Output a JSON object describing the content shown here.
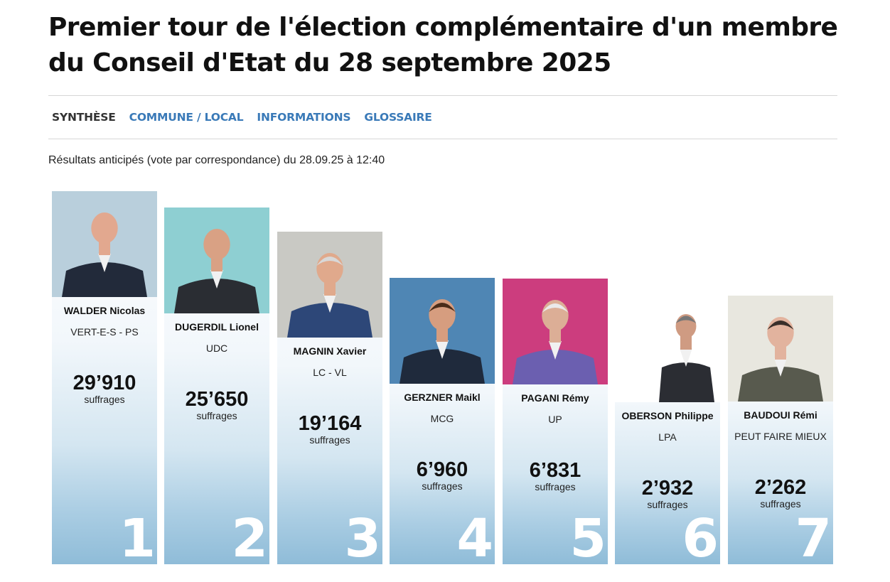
{
  "page": {
    "title": "Premier tour de l'élection complémentaire d'un membre du Conseil d'Etat du 28 septembre 2025",
    "tabs": [
      "SYNTHÈSE",
      "COMMUNE / LOCAL",
      "INFORMATIONS",
      "GLOSSAIRE"
    ],
    "active_tab": "SYNTHÈSE",
    "subtitle": "Résultats anticipés (vote par correspondance) du 28.09.25 à 12:40"
  },
  "colors": {
    "link": "#3a7ab8",
    "active_tab": "#333333",
    "card_gradient_bottom": "#8fbcd8",
    "rank_number": "#ffffff"
  },
  "candidates": [
    {
      "rank": "1",
      "name": "WALDER Nicolas",
      "party": "VERT-E-S - PS",
      "votes": "29’910",
      "votes_value": 29910,
      "unit": "suffrages",
      "photo": "portrait-walder",
      "photo_bg": "#b9cfdc"
    },
    {
      "rank": "2",
      "name": "DUGERDIL Lionel",
      "party": "UDC",
      "votes": "25’650",
      "votes_value": 25650,
      "unit": "suffrages",
      "photo": "portrait-dugerdil",
      "photo_bg": "#8ecfd2"
    },
    {
      "rank": "3",
      "name": "MAGNIN Xavier",
      "party": "LC - VL",
      "votes": "19’164",
      "votes_value": 19164,
      "unit": "suffrages",
      "photo": "portrait-magnin",
      "photo_bg": "#c9c9c4"
    },
    {
      "rank": "4",
      "name": "GERZNER Maikl",
      "party": "MCG",
      "votes": "6’960",
      "votes_value": 6960,
      "unit": "suffrages",
      "photo": "portrait-gerzner",
      "photo_bg": "#4f86b4"
    },
    {
      "rank": "5",
      "name": "PAGANI Rémy",
      "party": "UP",
      "votes": "6’831",
      "votes_value": 6831,
      "unit": "suffrages",
      "photo": "portrait-pagani",
      "photo_bg": "#cc3d7e"
    },
    {
      "rank": "6",
      "name": "OBERSON Philippe",
      "party": "LPA",
      "votes": "2’932",
      "votes_value": 2932,
      "unit": "suffrages",
      "photo": "portrait-oberson",
      "photo_bg": "#ffffff"
    },
    {
      "rank": "7",
      "name": "BAUDOUI Rémi",
      "party": "PEUT FAIRE MIEUX",
      "votes": "2’262",
      "votes_value": 2262,
      "unit": "suffrages",
      "photo": "portrait-baudoui",
      "photo_bg": "#e8e7df"
    }
  ]
}
